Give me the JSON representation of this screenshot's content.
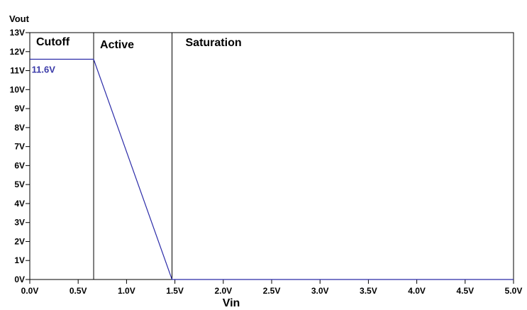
{
  "chart_data": {
    "type": "line",
    "xlabel": "Vin",
    "ylabel": "Vout",
    "xlim": [
      0,
      5
    ],
    "ylim": [
      0,
      13
    ],
    "x_ticks": [
      0,
      0.5,
      1,
      1.5,
      2,
      2.5,
      3,
      3.5,
      4,
      4.5,
      5
    ],
    "x_tick_labels": [
      "0.0V",
      "0.5V",
      "1.0V",
      "1.5V",
      "2.0V",
      "2.5V",
      "3.0V",
      "3.5V",
      "4.0V",
      "4.5V",
      "5.0V"
    ],
    "y_ticks": [
      0,
      1,
      2,
      3,
      4,
      5,
      6,
      7,
      8,
      9,
      10,
      11,
      12,
      13
    ],
    "y_tick_labels": [
      "0V",
      "1V",
      "2V",
      "3V",
      "4V",
      "5V",
      "6V",
      "7V",
      "8V",
      "9V",
      "10V",
      "11V",
      "12V",
      "13V"
    ],
    "grid": false,
    "series": [
      {
        "x": [
          0,
          0.66,
          1.47,
          5
        ],
        "y": [
          11.6,
          11.6,
          0,
          0
        ],
        "color": "#2b2ba8"
      }
    ],
    "regions": [
      {
        "label": "Cutoff",
        "x_start": 0,
        "x_end": 0.66
      },
      {
        "label": "Active",
        "x_start": 0.66,
        "x_end": 1.47
      },
      {
        "label": "Saturation",
        "x_start": 1.47,
        "x_end": 5
      }
    ],
    "dividers": [
      0.66,
      1.47
    ],
    "annotations": [
      {
        "text": "11.6V",
        "x": 0.1,
        "y": 11.6,
        "color": "#3a3aa8"
      }
    ]
  }
}
